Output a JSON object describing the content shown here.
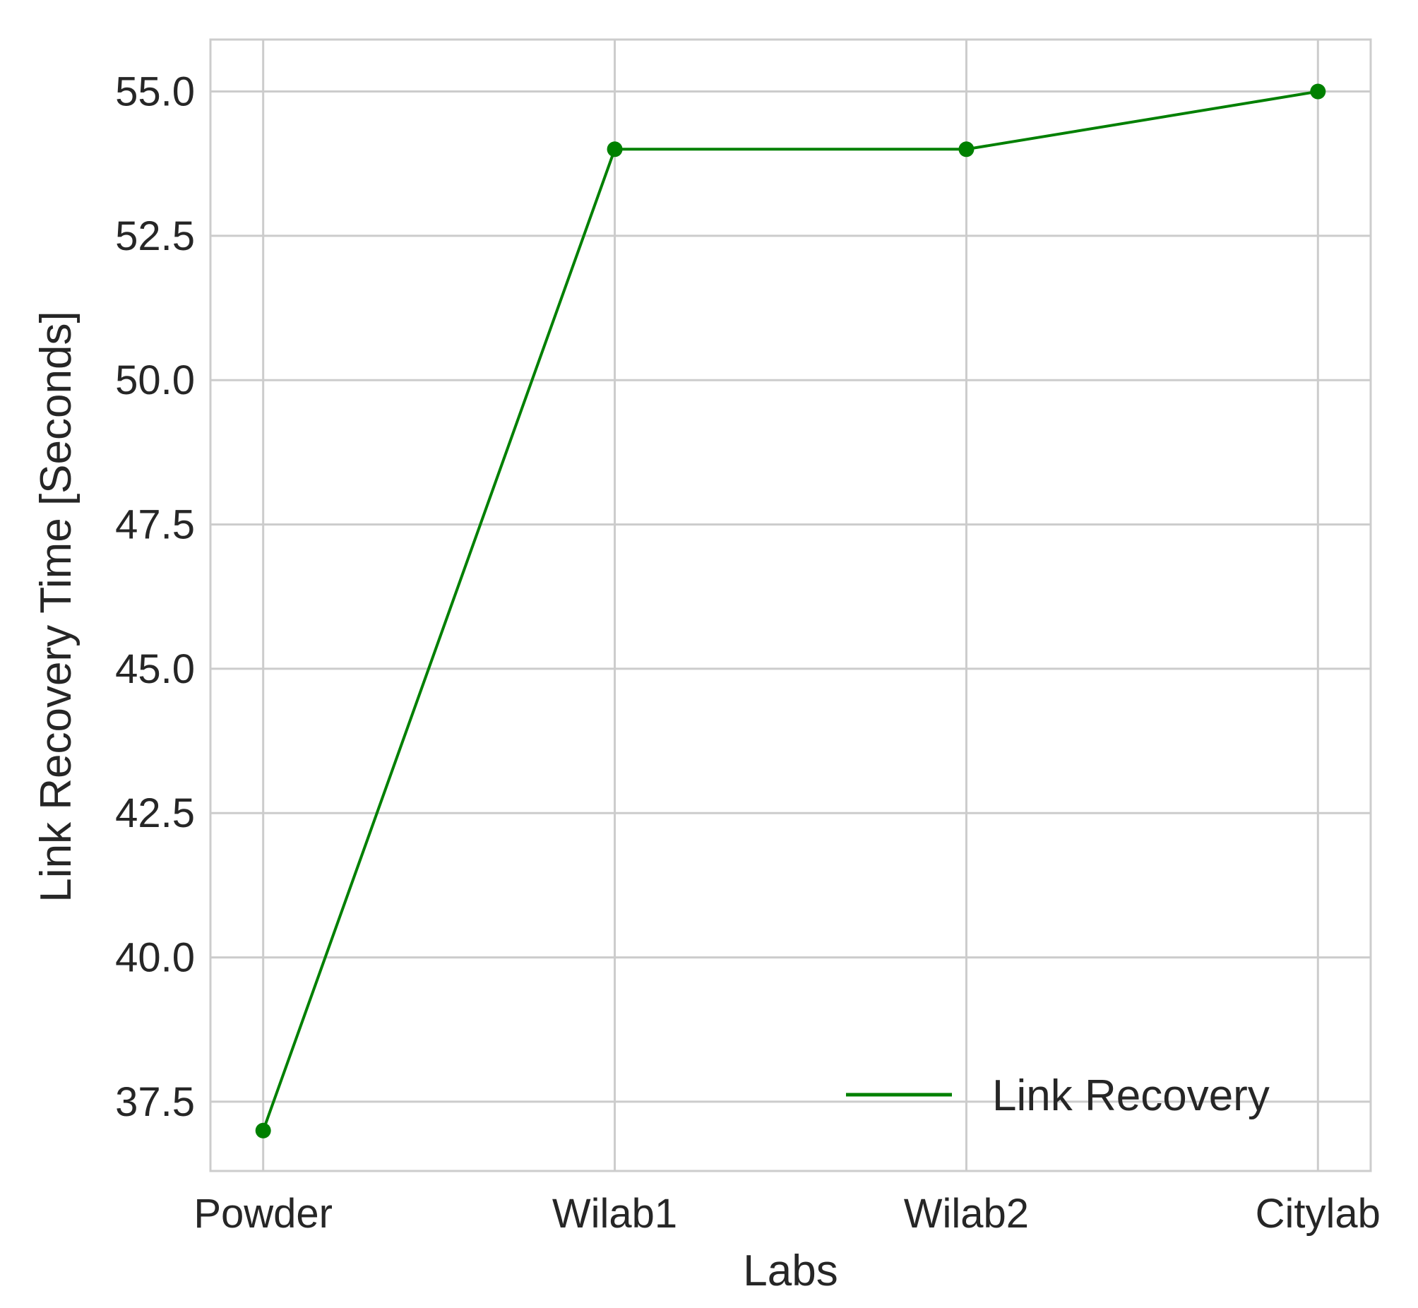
{
  "chart_data": {
    "type": "line",
    "title": "",
    "xlabel": "Labs",
    "ylabel": "Link Recovery Time  [Seconds]",
    "categories": [
      "Powder",
      "Wilab1",
      "Wilab2",
      "Citylab"
    ],
    "series": [
      {
        "name": "Link Recovery",
        "values": [
          37.0,
          54.0,
          54.0,
          55.0
        ],
        "color": "#008000",
        "marker": "circle"
      }
    ],
    "ylim": [
      36.3,
      55.9
    ],
    "yticks": [
      37.5,
      40.0,
      42.5,
      45.0,
      47.5,
      50.0,
      52.5,
      55.0
    ],
    "ytick_labels": [
      "37.5",
      "40.0",
      "42.5",
      "45.0",
      "47.5",
      "50.0",
      "52.5",
      "55.0"
    ],
    "grid": true,
    "grid_color": "#cccccc",
    "legend_position": "lower right"
  }
}
